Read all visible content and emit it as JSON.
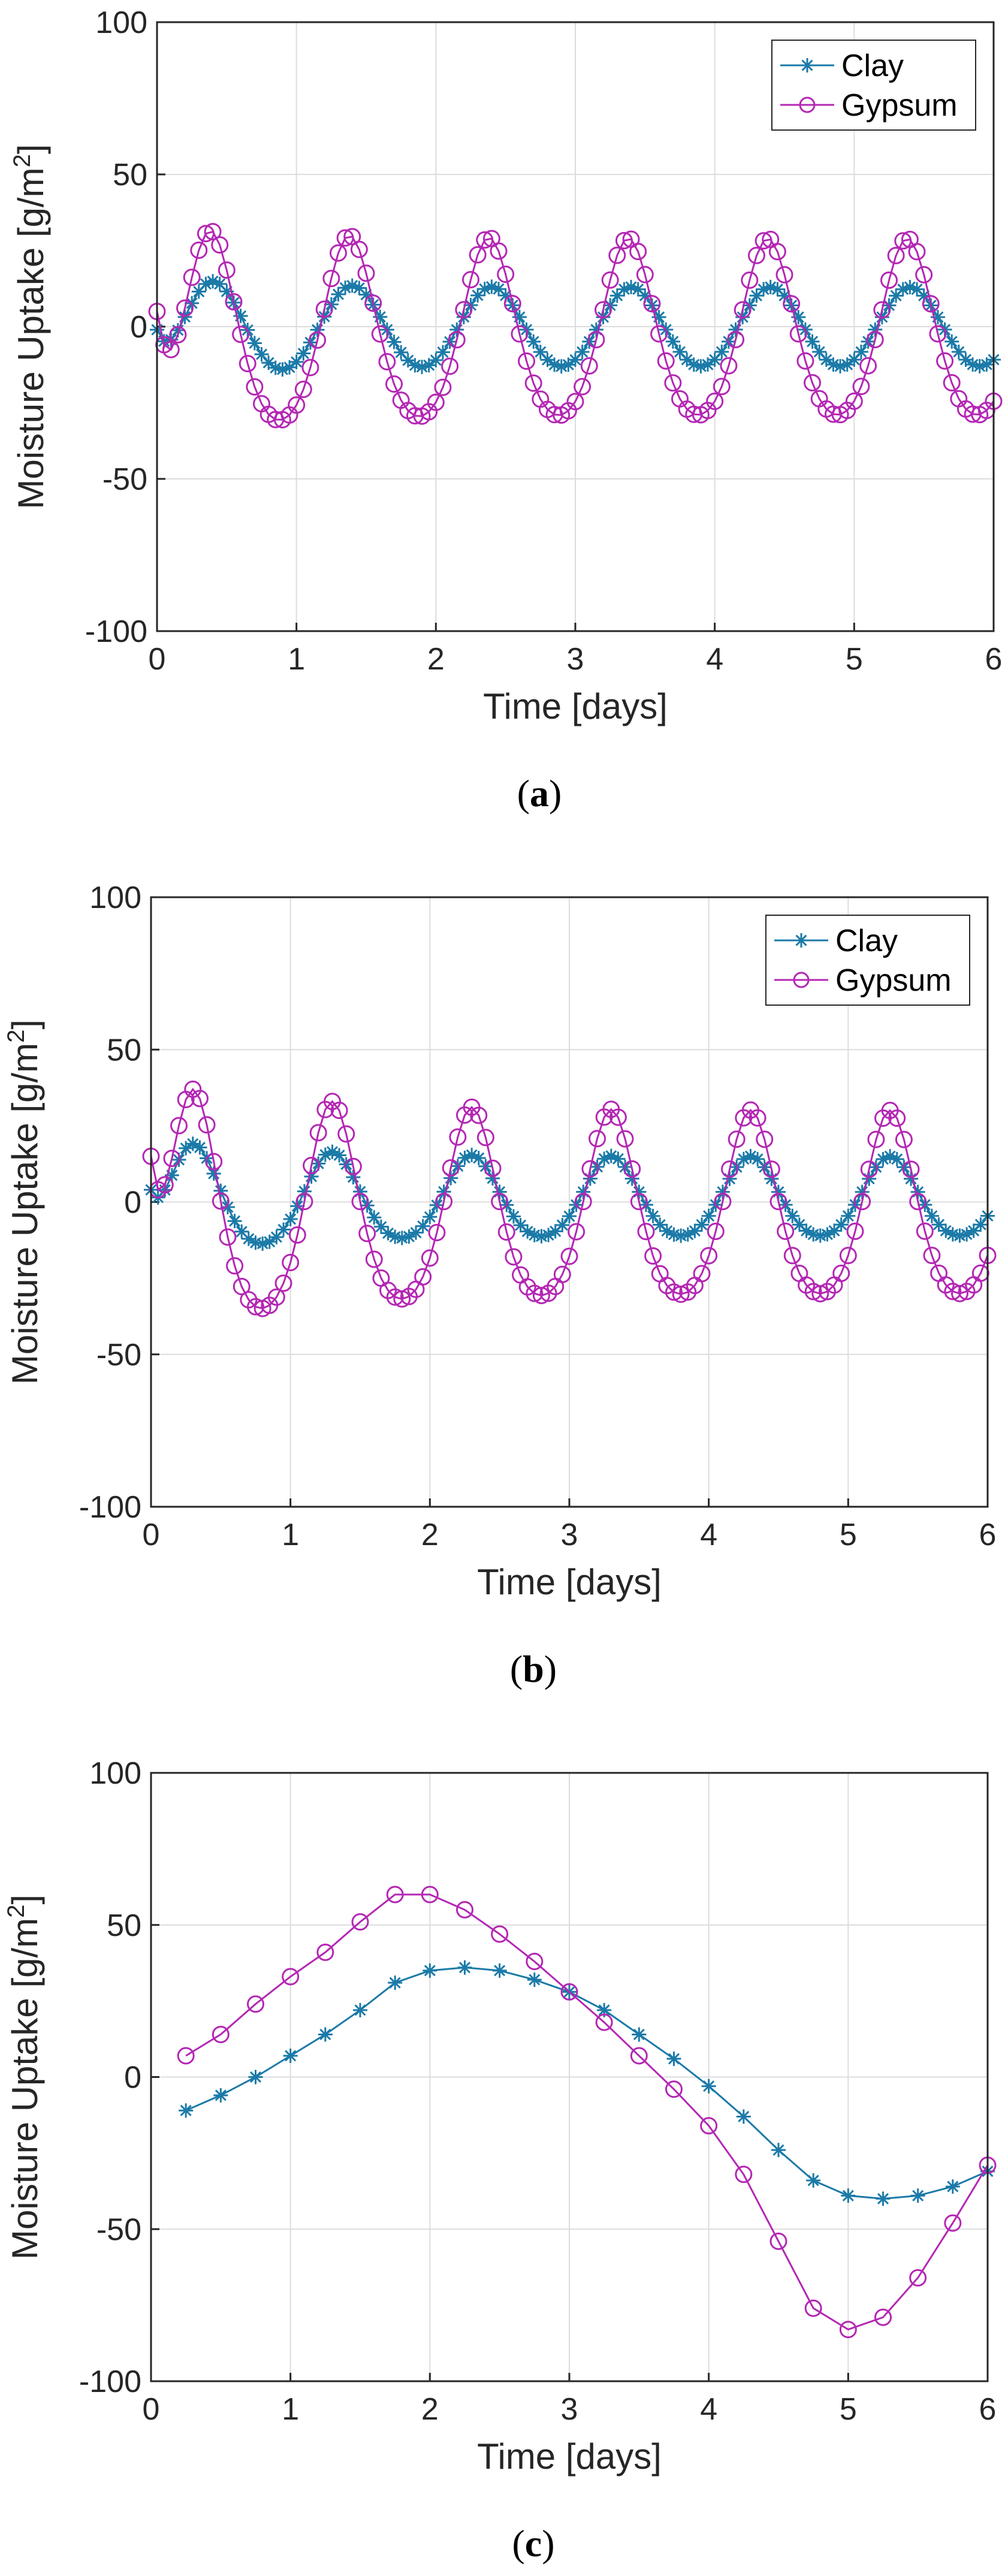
{
  "chart_data": [
    {
      "type": "line",
      "panel_label": "a",
      "caption_open": "(",
      "caption_close": ")",
      "xlabel": "Time [days]",
      "ylabel": "Moisture Uptake [g/m",
      "ylabel_sup": "2",
      "ylabel_close": "]",
      "xlim": [
        0,
        6
      ],
      "ylim": [
        -100,
        100
      ],
      "xticks": [
        "0",
        "1",
        "2",
        "3",
        "4",
        "5",
        "6"
      ],
      "yticks": [
        "100",
        "50",
        "0",
        "-50",
        "-100"
      ],
      "grid": true,
      "legend": "top-right",
      "series": [
        {
          "name": "Clay",
          "marker": "star",
          "color": "#1b7aa8",
          "dt": 0.05,
          "model": {
            "mean": 0,
            "amp0": 17,
            "amp_end": 13,
            "decay": 1.5,
            "peak": 0.4,
            "sharp": 0.3,
            "start": -1
          }
        },
        {
          "name": "Gypsum",
          "marker": "circle",
          "color": "#b427b4",
          "dt": 0.05,
          "model": {
            "mean": 0,
            "amp0": 34,
            "amp_end": 29,
            "decay": 1.2,
            "peak": 0.38,
            "sharp": 1.1,
            "start": 5
          }
        }
      ]
    },
    {
      "type": "line",
      "panel_label": "b",
      "caption_open": "(",
      "caption_close": ")",
      "xlabel": "Time [days]",
      "ylabel": "Moisture Uptake [g/m",
      "ylabel_sup": "2",
      "ylabel_close": "]",
      "xlim": [
        0,
        6
      ],
      "ylim": [
        -100,
        100
      ],
      "xticks": [
        "0",
        "1",
        "2",
        "3",
        "4",
        "5",
        "6"
      ],
      "yticks": [
        "100",
        "50",
        "0",
        "-50",
        "-100"
      ],
      "grid": true,
      "legend": "top-right",
      "series": [
        {
          "name": "Clay",
          "marker": "star",
          "color": "#1b7aa8",
          "dt": 0.05,
          "model": {
            "mean": 2,
            "amp0": 20,
            "amp_end": 13,
            "decay": 1.2,
            "peak": 0.3,
            "sharp": 0.9,
            "start": 4
          }
        },
        {
          "name": "Gypsum",
          "marker": "circle",
          "color": "#b427b4",
          "dt": 0.05,
          "model": {
            "mean": 0,
            "amp0": 41,
            "amp_end": 30,
            "decay": 1.0,
            "peak": 0.3,
            "sharp": 1.3,
            "start": 15
          }
        }
      ]
    },
    {
      "type": "line",
      "panel_label": "c",
      "caption_open": "(",
      "caption_close": ")",
      "xlabel": "Time [days]",
      "ylabel": "Moisture Uptake [g/m",
      "ylabel_sup": "2",
      "ylabel_close": "]",
      "xlim": [
        0,
        6
      ],
      "ylim": [
        -100,
        100
      ],
      "xticks": [
        "0",
        "1",
        "2",
        "3",
        "4",
        "5",
        "6"
      ],
      "yticks": [
        "100",
        "50",
        "0",
        "-50",
        "-100"
      ],
      "grid": true,
      "legend": "",
      "series": [
        {
          "name": "Clay",
          "marker": "star",
          "color": "#1b7aa8",
          "x": [
            0.25,
            0.5,
            0.75,
            1.0,
            1.25,
            1.5,
            1.75,
            2.0,
            2.25,
            2.5,
            2.75,
            3.0,
            3.25,
            3.5,
            3.75,
            4.0,
            4.25,
            4.5,
            4.75,
            5.0,
            5.25,
            5.5,
            5.75,
            6.0
          ],
          "y": [
            -11,
            -6,
            0,
            7,
            14,
            22,
            31,
            35,
            36,
            35,
            32,
            28,
            22,
            14,
            6,
            -3,
            -13,
            -24,
            -34,
            -39,
            -40,
            -39,
            -36,
            -31
          ]
        },
        {
          "name": "Gypsum",
          "marker": "circle",
          "color": "#b427b4",
          "x": [
            0.25,
            0.5,
            0.75,
            1.0,
            1.25,
            1.5,
            1.75,
            2.0,
            2.25,
            2.5,
            2.75,
            3.0,
            3.25,
            3.5,
            3.75,
            4.0,
            4.25,
            4.5,
            4.75,
            5.0,
            5.25,
            5.5,
            5.75,
            6.0
          ],
          "y": [
            7,
            14,
            24,
            33,
            41,
            51,
            60,
            60,
            55,
            47,
            38,
            28,
            18,
            7,
            -4,
            -16,
            -32,
            -54,
            -76,
            -83,
            -79,
            -66,
            -48,
            -29
          ]
        }
      ]
    }
  ]
}
